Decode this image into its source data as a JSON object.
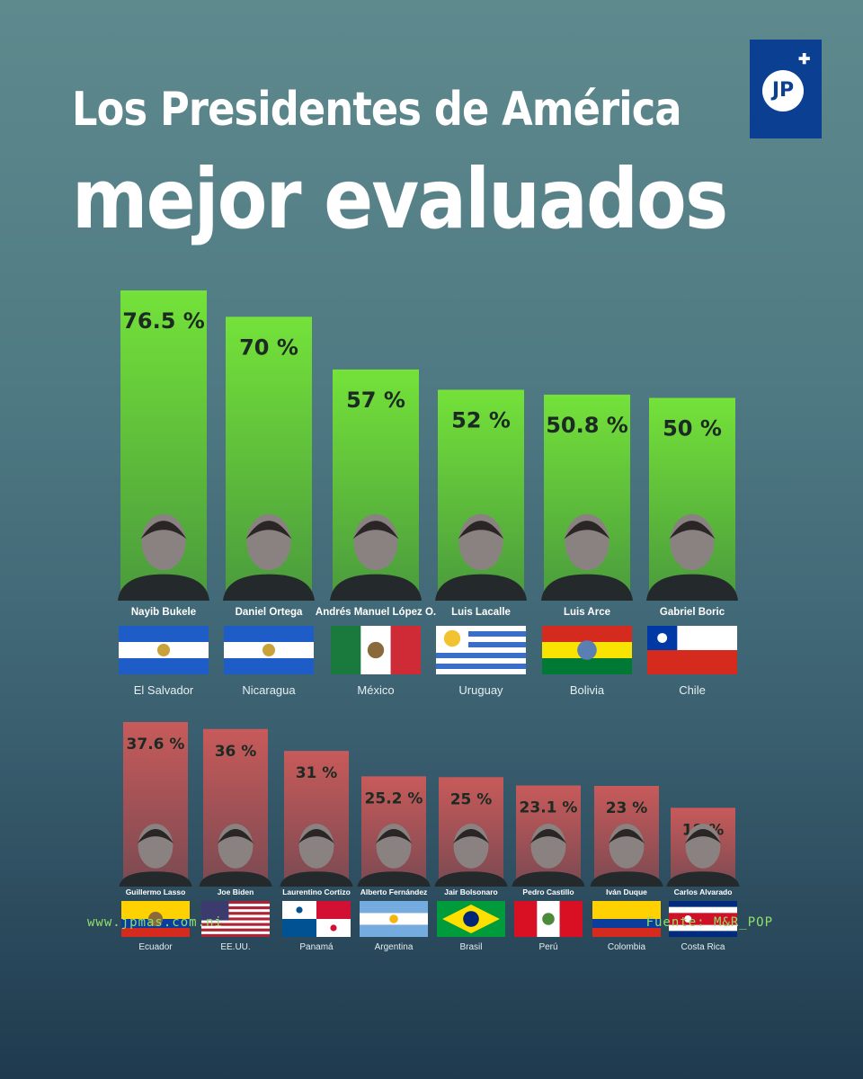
{
  "title_line1": "Los Presidentes de  América",
  "title_line2": "mejor evaluados",
  "logo_text": "JP",
  "footer": {
    "website": "www.jpmas.com.ni",
    "source": "Fuente: M&R_POP"
  },
  "colors": {
    "top_bar": "#74e23a",
    "bottom_bar": "#c85a5a"
  },
  "chart_data": [
    {
      "type": "bar",
      "categories": [
        "Nayib Bukele",
        "Daniel Ortega",
        "Andrés Manuel López O.",
        "Luis Lacalle",
        "Luis Arce",
        "Gabriel Boric"
      ],
      "countries": [
        "El Salvador",
        "Nicaragua",
        "México",
        "Uruguay",
        "Bolivia",
        "Chile"
      ],
      "values": [
        76.5,
        70,
        57,
        52,
        50.8,
        50
      ],
      "labels": [
        "76.5 %",
        "70 %",
        "57 %",
        "52 %",
        "50.8 %",
        "50 %"
      ]
    },
    {
      "type": "bar",
      "categories": [
        "Guillermo Lasso",
        "Joe Biden",
        "Laurentino Cortizo",
        "Alberto Fernández",
        "Jair Bolsonaro",
        "Pedro Castillo",
        "Iván Duque",
        "Carlos Alvarado"
      ],
      "countries": [
        "Ecuador",
        "EE.UU.",
        "Panamá",
        "Argentina",
        "Brasil",
        "Perú",
        "Colombia",
        "Costa Rica"
      ],
      "values": [
        37.6,
        36,
        31,
        25.2,
        25,
        23.1,
        23,
        18
      ],
      "labels": [
        "37.6 %",
        "36 %",
        "31 %",
        "25.2 %",
        "25 %",
        "23.1 %",
        "23 %",
        "18 %"
      ]
    }
  ]
}
